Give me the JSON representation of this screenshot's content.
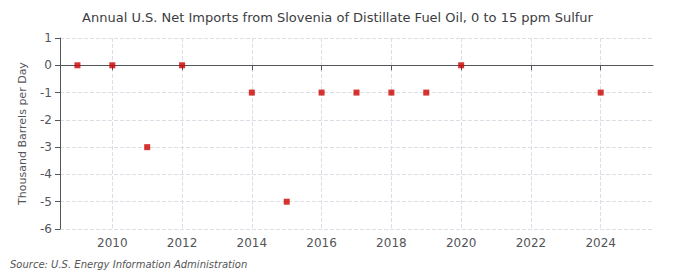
{
  "chart_data": {
    "type": "scatter",
    "title": "Annual U.S. Net Imports from Slovenia of Distillate Fuel Oil, 0 to 15 ppm Sulfur",
    "ylabel": "Thousand Barrels per Day",
    "source": "Source: U.S. Energy Information Administration",
    "x": [
      2009,
      2010,
      2011,
      2012,
      2014,
      2015,
      2016,
      2017,
      2018,
      2019,
      2020,
      2024
    ],
    "values": [
      0,
      0,
      -3,
      0,
      -1,
      -5,
      -1,
      -1,
      -1,
      -1,
      0,
      -1
    ],
    "color": "#cc0000",
    "marker": "square",
    "xlim": [
      2008.5,
      2025.5
    ],
    "xticks": [
      2010,
      2012,
      2014,
      2016,
      2018,
      2020,
      2022,
      2024
    ],
    "ylim": [
      -6,
      1
    ],
    "yticks": [
      -6,
      -5,
      -4,
      -3,
      -2,
      -1,
      0,
      1
    ],
    "grid": true
  }
}
